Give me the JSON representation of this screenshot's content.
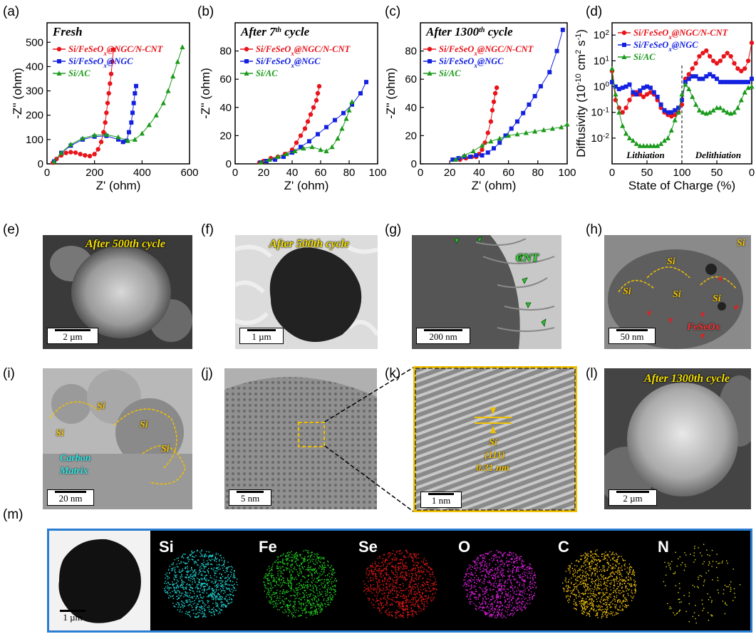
{
  "panels": {
    "a": "(a)",
    "b": "(b)",
    "c": "(c)",
    "d": "(d)",
    "e": "(e)",
    "f": "(f)",
    "g": "(g)",
    "h": "(h)",
    "i": "(i)",
    "j": "(j)",
    "k": "(k)",
    "l": "(l)",
    "m": "(m)"
  },
  "legend": {
    "s1": "Si/FeSeOx@NGC/N-CNT",
    "s2": "Si/FeSeOx@NGC",
    "s3": "Si/AC"
  },
  "colors": {
    "s1": "#e8141b",
    "s2": "#1422e0",
    "s3": "#1a9a1a"
  },
  "chart_data": [
    {
      "type": "scatter",
      "panel": "a",
      "title": "Fresh",
      "xlabel": "Z' (ohm)",
      "ylabel": "-Z'' (ohm)",
      "xlim": [
        0,
        600
      ],
      "ylim": [
        0,
        580
      ],
      "xticks": [
        0,
        200,
        400,
        600
      ],
      "yticks": [
        0,
        100,
        200,
        300,
        400,
        500
      ],
      "series": [
        {
          "name": "Si/FeSeOx@NGC/N-CNT",
          "x": [
            25,
            40,
            60,
            80,
            100,
            120,
            140,
            160,
            180,
            200,
            215,
            228,
            238,
            245,
            250,
            255,
            260,
            265,
            270,
            275,
            280
          ],
          "y": [
            5,
            20,
            35,
            45,
            48,
            46,
            40,
            35,
            32,
            40,
            60,
            90,
            130,
            170,
            210,
            250,
            290,
            330,
            370,
            420,
            470
          ]
        },
        {
          "name": "Si/FeSeOx@NGC",
          "x": [
            30,
            60,
            100,
            150,
            200,
            250,
            300,
            320,
            335,
            345,
            355,
            360,
            365,
            370,
            375
          ],
          "y": [
            10,
            45,
            75,
            100,
            112,
            115,
            100,
            90,
            95,
            130,
            170,
            210,
            250,
            290,
            320
          ]
        },
        {
          "name": "Si/AC",
          "x": [
            30,
            60,
            100,
            150,
            200,
            250,
            300,
            340,
            370,
            400,
            430,
            460,
            490,
            510,
            530,
            550,
            570
          ],
          "y": [
            10,
            45,
            80,
            105,
            118,
            120,
            110,
            95,
            100,
            125,
            160,
            200,
            250,
            300,
            360,
            420,
            480
          ]
        }
      ]
    },
    {
      "type": "scatter",
      "panel": "b",
      "title": "After 7th cycle",
      "xlabel": "Z' (ohm)",
      "ylabel": "-Z'' (ohm)",
      "xlim": [
        0,
        100
      ],
      "ylim": [
        0,
        100
      ],
      "xticks": [
        0,
        20,
        40,
        60,
        80,
        100
      ],
      "yticks": [
        0,
        20,
        40,
        60,
        80
      ],
      "series": [
        {
          "name": "Si/FeSeOx@NGC/N-CNT",
          "x": [
            17,
            20,
            25,
            30,
            35,
            40,
            43,
            46,
            49,
            51,
            53,
            55,
            57,
            58,
            59
          ],
          "y": [
            1,
            2,
            4,
            5,
            7,
            10,
            15,
            20,
            25,
            30,
            35,
            40,
            45,
            50,
            55
          ]
        },
        {
          "name": "Si/FeSeOx@NGC",
          "x": [
            18,
            22,
            28,
            34,
            40,
            46,
            52,
            58,
            64,
            70,
            76,
            82,
            88,
            92
          ],
          "y": [
            1,
            2,
            3,
            5,
            8,
            12,
            16,
            21,
            26,
            31,
            36,
            42,
            50,
            58
          ]
        },
        {
          "name": "Si/AC",
          "x": [
            18,
            24,
            30,
            36,
            42,
            48,
            54,
            60,
            64,
            68,
            72,
            75,
            78,
            80,
            82
          ],
          "y": [
            1,
            3,
            5,
            7,
            9,
            11,
            12,
            10,
            9,
            12,
            18,
            25,
            32,
            38,
            44
          ]
        }
      ]
    },
    {
      "type": "scatter",
      "panel": "c",
      "title": "After 1300th cycle",
      "xlabel": "Z' (ohm)",
      "ylabel": "-Z'' (ohm)",
      "xlim": [
        0,
        100
      ],
      "ylim": [
        0,
        100
      ],
      "xticks": [
        0,
        20,
        40,
        60,
        80,
        100
      ],
      "yticks": [
        0,
        20,
        40,
        60,
        80
      ],
      "series": [
        {
          "name": "Si/FeSeOx@NGC/N-CNT",
          "x": [
            27,
            31,
            35,
            38,
            40,
            42,
            44,
            46,
            48,
            49,
            50,
            51,
            52
          ],
          "y": [
            3,
            4,
            5,
            5,
            7,
            10,
            15,
            22,
            30,
            38,
            44,
            50,
            54
          ]
        },
        {
          "name": "Si/FeSeOx@NGC",
          "x": [
            22,
            26,
            30,
            34,
            38,
            42,
            46,
            50,
            54,
            58,
            62,
            66,
            70,
            74,
            78,
            82,
            88,
            93,
            97
          ],
          "y": [
            3,
            4,
            5,
            5,
            6,
            6,
            8,
            11,
            15,
            20,
            25,
            30,
            36,
            42,
            48,
            55,
            65,
            80,
            95
          ]
        },
        {
          "name": "Si/AC",
          "x": [
            24,
            30,
            36,
            42,
            48,
            54,
            60,
            66,
            72,
            78,
            84,
            90,
            96,
            100
          ],
          "y": [
            3,
            6,
            9,
            13,
            16,
            18,
            20,
            21,
            22,
            23,
            24,
            25,
            26,
            28
          ]
        }
      ]
    },
    {
      "type": "scatter",
      "panel": "d",
      "xlabel": "State of Charge (%)",
      "ylabel": "Diffusivity (10^-10 cm^2 s^-1)",
      "yscale": "log",
      "ylim": [
        0.001,
        300
      ],
      "xticks": [
        "0",
        "50",
        "100",
        "50",
        "0"
      ],
      "yticks": [
        "10^-2",
        "10^-1",
        "10^0",
        "10^1",
        "10^2"
      ],
      "annotations": [
        "Lithiation",
        "Delithiation"
      ],
      "series": [
        {
          "name": "Si/FeSeOx@NGC/N-CNT",
          "x": [
            0,
            5,
            10,
            15,
            20,
            25,
            30,
            35,
            40,
            45,
            50,
            55,
            60,
            65,
            70,
            75,
            80,
            85,
            90,
            95,
            100,
            105,
            110,
            115,
            120,
            125,
            130,
            135,
            140,
            145,
            150,
            155,
            160,
            165,
            170,
            175,
            180,
            185,
            190,
            195,
            200
          ],
          "y": [
            4,
            0.3,
            0.15,
            0.1,
            0.15,
            0.3,
            0.5,
            0.6,
            0.5,
            0.4,
            0.5,
            0.6,
            0.5,
            0.3,
            0.15,
            0.1,
            0.08,
            0.07,
            0.08,
            0.1,
            0.2,
            2,
            3,
            5,
            8,
            15,
            20,
            25,
            15,
            10,
            8,
            10,
            15,
            20,
            15,
            8,
            5,
            4,
            5,
            10,
            50
          ]
        },
        {
          "name": "Si/FeSeOx@NGC",
          "x": [
            0,
            5,
            10,
            15,
            20,
            25,
            30,
            35,
            40,
            45,
            50,
            55,
            60,
            65,
            70,
            75,
            80,
            85,
            90,
            95,
            100,
            105,
            110,
            115,
            120,
            125,
            130,
            135,
            140,
            145,
            150,
            155,
            160,
            165,
            170,
            175,
            180,
            185,
            190,
            195,
            200
          ],
          "y": [
            1.5,
            1,
            0.8,
            0.9,
            1,
            1.2,
            0.6,
            0.5,
            0.7,
            0.9,
            1,
            0.9,
            0.6,
            0.4,
            0.2,
            0.12,
            0.1,
            0.1,
            0.12,
            0.15,
            0.3,
            1.5,
            2,
            2.5,
            2.5,
            2,
            2,
            2.5,
            3,
            2.5,
            2,
            1.5,
            1.5,
            1.5,
            1.5,
            1.5,
            1.5,
            1.5,
            1.5,
            1.5,
            2
          ]
        },
        {
          "name": "Si/AC",
          "x": [
            0,
            5,
            10,
            15,
            20,
            25,
            30,
            35,
            40,
            45,
            50,
            55,
            60,
            65,
            70,
            75,
            80,
            85,
            90,
            95,
            100,
            105,
            110,
            115,
            120,
            125,
            130,
            135,
            140,
            145,
            150,
            155,
            160,
            165,
            170,
            175,
            180,
            185,
            190,
            195,
            200
          ],
          "y": [
            5,
            0.5,
            0.1,
            0.03,
            0.015,
            0.01,
            0.008,
            0.006,
            0.005,
            0.005,
            0.005,
            0.005,
            0.005,
            0.005,
            0.006,
            0.008,
            0.01,
            0.02,
            0.05,
            0.1,
            0.5,
            1.2,
            0.8,
            0.4,
            0.2,
            0.12,
            0.1,
            0.09,
            0.1,
            0.12,
            0.15,
            0.15,
            0.12,
            0.1,
            0.09,
            0.1,
            0.15,
            0.3,
            0.6,
            0.9,
            1
          ]
        }
      ]
    }
  ],
  "micrographs": {
    "e": {
      "title": "After 500th cycle",
      "scale": "2 µm"
    },
    "f": {
      "title": "After 500th cycle",
      "scale": "1 µm"
    },
    "g": {
      "label": "CNT",
      "scale": "200 nm"
    },
    "h": {
      "si": "Si",
      "feseox": "FeSeOx",
      "scale": "50 nm"
    },
    "i": {
      "si": "Si",
      "carbon": "Carbon Matrix",
      "scale": "20 nm"
    },
    "j": {
      "scale": "5 nm"
    },
    "k": {
      "si": "Si",
      "plane": "(111)",
      "spacing": "0.31 nm",
      "scale": "1 nm"
    },
    "l": {
      "title": "After 1300th cycle",
      "scale": "2 µm"
    },
    "m": {
      "scale": "1 µm",
      "elements": [
        "Si",
        "Fe",
        "Se",
        "O",
        "C",
        "N"
      ],
      "element_colors": [
        "#20d8d8",
        "#22d022",
        "#e01818",
        "#e020e0",
        "#f0c010",
        "#e8e010"
      ]
    }
  }
}
